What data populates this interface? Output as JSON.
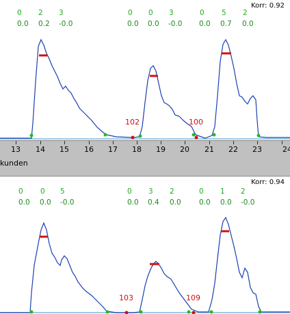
{
  "panel1": {
    "korr": "Korr: 0.92",
    "groups": [
      {
        "top": [
          "0",
          "2",
          "3"
        ],
        "bottom": [
          "0.0",
          "0.2",
          "-0.0"
        ]
      },
      {
        "top": [
          "0",
          "0",
          "3"
        ],
        "bottom": [
          "0.0",
          "0.0",
          "-0.0"
        ]
      },
      {
        "top": [
          "0",
          "5",
          "2"
        ],
        "bottom": [
          "0.0",
          "0.7",
          "0.0"
        ]
      }
    ],
    "gap_labels": [
      "102",
      "100"
    ]
  },
  "panel2": {
    "korr": "Korr: 0.94",
    "groups": [
      {
        "top": [
          "0",
          "0",
          "5"
        ],
        "bottom": [
          "0.0",
          "0.0",
          "-0.0"
        ]
      },
      {
        "top": [
          "0",
          "3",
          "2"
        ],
        "bottom": [
          "0.0",
          "0.4",
          "0.0"
        ]
      },
      {
        "top": [
          "0",
          "1",
          "2"
        ],
        "bottom": [
          "0.0",
          "0.0",
          "-0.0"
        ]
      }
    ],
    "gap_labels": [
      "103",
      "109"
    ]
  },
  "ruler": {
    "unit_label": "kunden",
    "ticks": [
      "13",
      "14",
      "15",
      "16",
      "17",
      "18",
      "19",
      "20",
      "21",
      "22",
      "23",
      "24"
    ]
  },
  "colors": {
    "trace": "#1a3fb0",
    "peak_bar": "#d01010",
    "boundary_dot": "#22bb22",
    "gap_dot": "#cc1111",
    "baseline": "#7ab8e0",
    "ruler_bg": "#c0c0c0"
  }
}
